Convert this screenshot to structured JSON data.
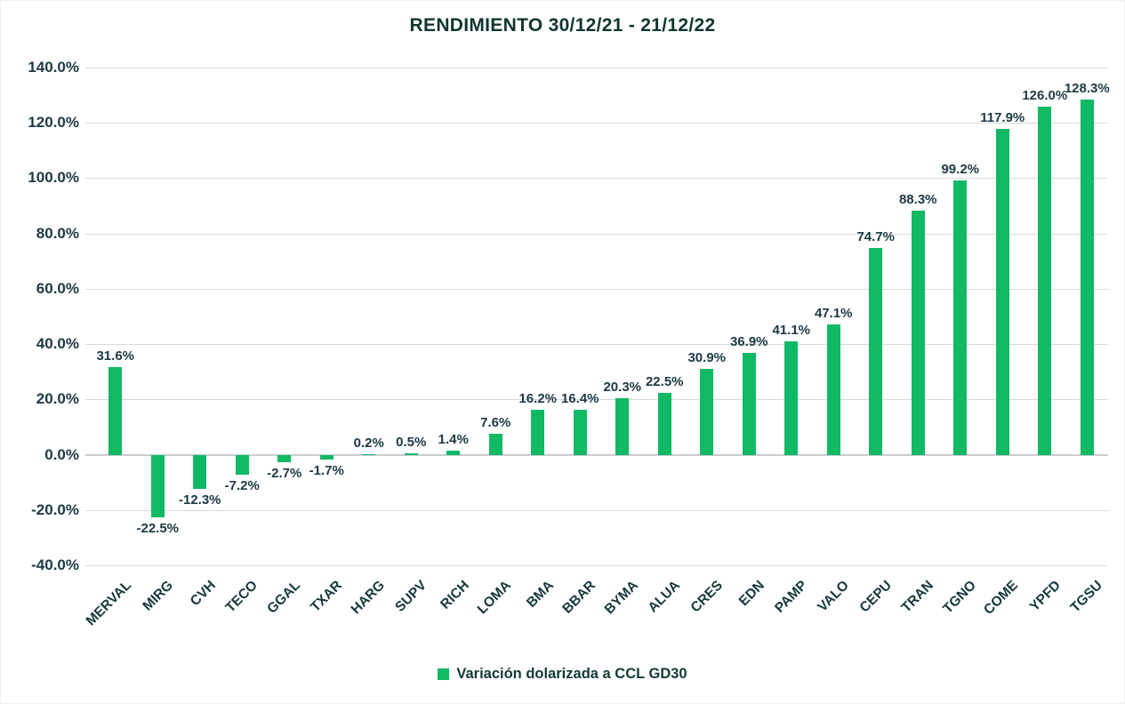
{
  "title": "RENDIMIENTO 30/12/21 - 21/12/22",
  "legend": {
    "label": "Variación dolarizada a CCL GD30",
    "swatch_color": "#10b964"
  },
  "colors": {
    "bar": "#10b964",
    "title_text": "#10362f",
    "label_text": "#1c3944",
    "gridline": "#d9d9d9",
    "zero_line": "#c9cdd1",
    "background": "#ffffff"
  },
  "chart_data": {
    "type": "bar",
    "title": "RENDIMIENTO 30/12/21 - 21/12/22",
    "categories": [
      "MERVAL",
      "MIRG",
      "CVH",
      "TECO",
      "GGAL",
      "TXAR",
      "HARG",
      "SUPV",
      "RICH",
      "LOMA",
      "BMA",
      "BBAR",
      "BYMA",
      "ALUA",
      "CRES",
      "EDN",
      "PAMP",
      "VALO",
      "CEPU",
      "TRAN",
      "TGNO",
      "COME",
      "YPFD",
      "TGSU"
    ],
    "values": [
      31.6,
      -22.5,
      -12.3,
      -7.2,
      -2.7,
      -1.7,
      0.2,
      0.5,
      1.4,
      7.6,
      16.2,
      16.4,
      20.3,
      22.5,
      30.9,
      36.9,
      41.1,
      47.1,
      74.7,
      88.3,
      99.2,
      117.9,
      126.0,
      128.3
    ],
    "data_labels": [
      "31.6%",
      "-22.5%",
      "-12.3%",
      "-7.2%",
      "-2.7%",
      "-1.7%",
      "0.2%",
      "0.5%",
      "1.4%",
      "7.6%",
      "16.2%",
      "16.4%",
      "20.3%",
      "22.5%",
      "30.9%",
      "36.9%",
      "41.1%",
      "47.1%",
      "74.7%",
      "88.3%",
      "99.2%",
      "117.9%",
      "126.0%",
      "128.3%"
    ],
    "series_name": "Variación dolarizada a CCL GD30",
    "xlabel": "",
    "ylabel": "",
    "ylim": [
      -40,
      140
    ],
    "y_tick_values": [
      140,
      120,
      100,
      80,
      60,
      40,
      20,
      0,
      -20,
      -40
    ],
    "y_tick_labels": [
      "140.0%",
      "120.0%",
      "100.0%",
      "80.0%",
      "60.0%",
      "40.0%",
      "20.0%",
      "0.0%",
      "-20.0%",
      "-40.0%"
    ],
    "grid": true,
    "legend_position": "bottom"
  }
}
